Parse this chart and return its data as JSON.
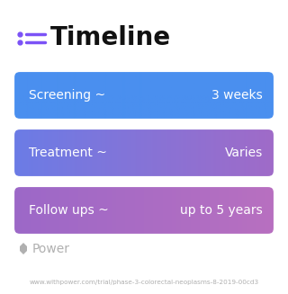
{
  "title": "Timeline",
  "title_fontsize": 20,
  "title_color": "#111111",
  "icon_color": "#7B52F6",
  "background_color": "#ffffff",
  "rows": [
    {
      "left_label": "Screening ~",
      "right_label": "3 weeks",
      "gradient_start": "#4A8FEF",
      "gradient_end": "#4A8FEF"
    },
    {
      "left_label": "Treatment ~",
      "right_label": "Varies",
      "gradient_start": "#6B7DE8",
      "gradient_end": "#A06BC8"
    },
    {
      "left_label": "Follow ups ~",
      "right_label": "up to 5 years",
      "gradient_start": "#9C68C8",
      "gradient_end": "#B870C0"
    }
  ],
  "watermark": "Power",
  "url": "www.withpower.com/trial/phase-3-colorectal-neoplasms-8-2019-00cd3",
  "text_color_white": "#ffffff",
  "watermark_color": "#b0b0b0",
  "url_color": "#b0b0b0",
  "label_fontsize": 10,
  "watermark_fontsize": 10,
  "url_fontsize": 5.2,
  "fig_width": 3.2,
  "fig_height": 3.27,
  "dpi": 100
}
